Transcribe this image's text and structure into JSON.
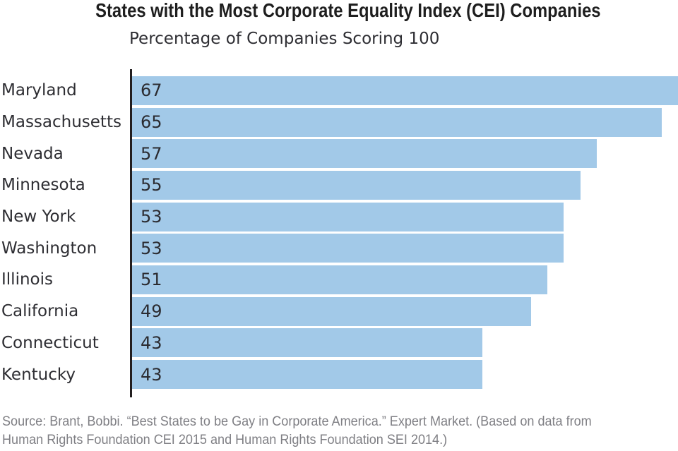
{
  "chart_data": {
    "type": "bar",
    "orientation": "horizontal",
    "title": "States with the Most Corporate Equality Index (CEI) Companies",
    "subtitle": "Percentage of Companies Scoring 100",
    "categories": [
      "Maryland",
      "Massachusetts",
      "Nevada",
      "Minnesota",
      "New York",
      "Washington",
      "Illinois",
      "California",
      "Connecticut",
      "Kentucky"
    ],
    "values": [
      67,
      65,
      57,
      55,
      53,
      53,
      51,
      49,
      43,
      43
    ],
    "xlim": [
      0,
      67
    ],
    "bar_color": "#a2c9e8",
    "axis_color": "#221e1f",
    "value_labels_inside_bars": true,
    "grid": false,
    "legend": false,
    "source_line1": "Source: Brant, Bobbi. “Best States to be Gay in Corporate America.” Expert Market. (Based on data from",
    "source_line2": "Human Rights Foundation CEI 2015 and Human Rights Foundation SEI 2014.)"
  }
}
